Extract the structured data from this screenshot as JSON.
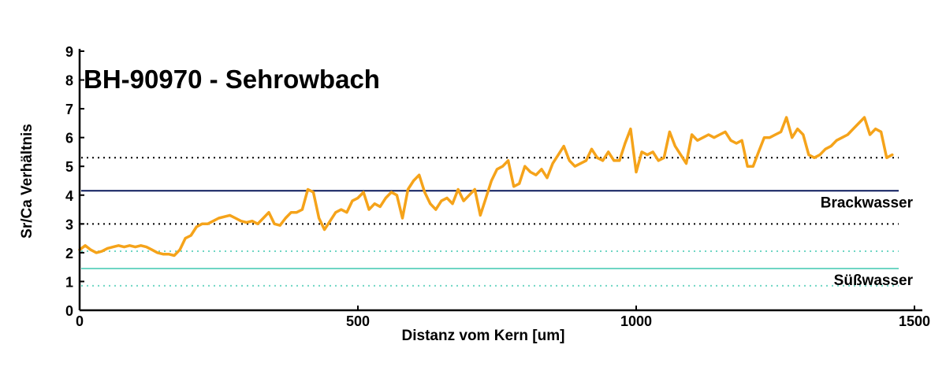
{
  "chart_data": {
    "type": "line",
    "title": "BH-90970 - Sehrowbach",
    "xlabel": "Distanz vom Kern [um]",
    "ylabel": "Sr/Ca Verhältnis",
    "xlim": [
      0,
      1500
    ],
    "ylim": [
      0,
      9
    ],
    "x_ticks": [
      "0",
      "500",
      "1000",
      "1500"
    ],
    "y_ticks": [
      "0",
      "1",
      "2",
      "3",
      "4",
      "5",
      "6",
      "7",
      "8",
      "9"
    ],
    "grid": false,
    "series_color": "#f5a31a",
    "series": [
      {
        "x": [
          0,
          10,
          20,
          30,
          40,
          50,
          60,
          70,
          80,
          90,
          100,
          110,
          120,
          130,
          140,
          150,
          160,
          170,
          180,
          190,
          200,
          210,
          220,
          230,
          240,
          250,
          260,
          270,
          280,
          290,
          300,
          310,
          320,
          330,
          340,
          350,
          360,
          370,
          380,
          390,
          400,
          410,
          420,
          430,
          440,
          450,
          460,
          470,
          480,
          490,
          500,
          510,
          520,
          530,
          540,
          550,
          560,
          570,
          580,
          590,
          600,
          610,
          620,
          630,
          640,
          650,
          660,
          670,
          680,
          690,
          700,
          710,
          720,
          730,
          740,
          750,
          760,
          770,
          780,
          790,
          800,
          810,
          820,
          830,
          840,
          850,
          860,
          870,
          880,
          890,
          900,
          910,
          920,
          930,
          940,
          950,
          960,
          970,
          980,
          990,
          1000,
          1010,
          1020,
          1030,
          1040,
          1050,
          1060,
          1070,
          1080,
          1090,
          1100,
          1110,
          1120,
          1130,
          1140,
          1150,
          1160,
          1170,
          1180,
          1190,
          1200,
          1210,
          1220,
          1230,
          1240,
          1250,
          1260,
          1270,
          1280,
          1290,
          1300,
          1310,
          1320,
          1330,
          1340,
          1350,
          1360,
          1370,
          1380,
          1390,
          1400,
          1410,
          1420,
          1430,
          1440,
          1450,
          1460
        ],
        "y": [
          2.1,
          2.25,
          2.1,
          2.0,
          2.05,
          2.15,
          2.2,
          2.25,
          2.2,
          2.25,
          2.2,
          2.25,
          2.2,
          2.1,
          2.0,
          1.95,
          1.95,
          1.9,
          2.1,
          2.5,
          2.6,
          2.9,
          3.0,
          3.0,
          3.1,
          3.2,
          3.25,
          3.3,
          3.2,
          3.1,
          3.05,
          3.1,
          3.0,
          3.2,
          3.4,
          3.0,
          2.95,
          3.2,
          3.4,
          3.4,
          3.5,
          4.2,
          4.1,
          3.2,
          2.8,
          3.1,
          3.4,
          3.5,
          3.4,
          3.8,
          3.9,
          4.1,
          3.5,
          3.7,
          3.6,
          3.9,
          4.1,
          4.0,
          3.2,
          4.2,
          4.5,
          4.7,
          4.1,
          3.7,
          3.5,
          3.8,
          3.9,
          3.7,
          4.2,
          3.8,
          4.0,
          4.2,
          3.3,
          3.9,
          4.5,
          4.9,
          5.0,
          5.2,
          4.3,
          4.4,
          5.0,
          4.8,
          4.7,
          4.9,
          4.6,
          5.1,
          5.4,
          5.7,
          5.2,
          5.0,
          5.1,
          5.2,
          5.6,
          5.3,
          5.2,
          5.5,
          5.2,
          5.2,
          5.8,
          6.3,
          4.8,
          5.5,
          5.4,
          5.5,
          5.2,
          5.3,
          6.2,
          5.7,
          5.4,
          5.1,
          6.1,
          5.9,
          6.0,
          6.1,
          6.0,
          6.1,
          6.2,
          5.9,
          5.8,
          5.9,
          5.0,
          5.0,
          5.5,
          6.0,
          6.0,
          6.1,
          6.2,
          6.7,
          6.0,
          6.3,
          6.1,
          5.4,
          5.3,
          5.4,
          5.6,
          5.7,
          5.9,
          6.0,
          6.1,
          6.3,
          6.5,
          6.7,
          6.1,
          6.3,
          6.2,
          5.3,
          5.4
        ]
      }
    ],
    "reference_lines": [
      {
        "y": 5.3,
        "style": "dotted",
        "color": "#000000"
      },
      {
        "y": 4.15,
        "style": "solid",
        "color": "#0a1a5c",
        "label": "Brackwasser"
      },
      {
        "y": 3.0,
        "style": "dotted",
        "color": "#000000"
      },
      {
        "y": 2.05,
        "style": "dotted",
        "color": "#6fd6c4"
      },
      {
        "y": 1.45,
        "style": "solid",
        "color": "#6fd6c4",
        "label": "Süßwasser"
      },
      {
        "y": 0.85,
        "style": "dotted",
        "color": "#6fd6c4"
      }
    ]
  }
}
